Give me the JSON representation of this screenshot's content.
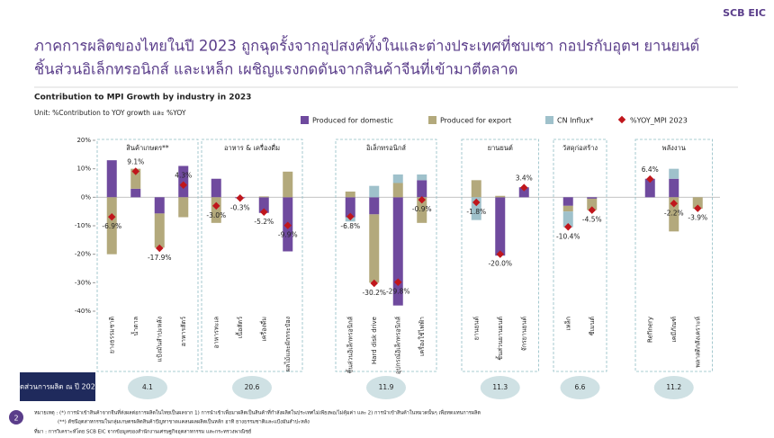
{
  "header": {
    "logo": "SCB EIC",
    "title_lines": [
      "ภาคการผลิตของไทยในปี 2023 ถูกฉุดรั้งจากอุปสงค์ทั้งในและต่างประเทศที่ชบเซา กอปรกับอุตฯ ยานยนต์",
      "ชิ้นส่วนอิเล็กทรอนิกส์ และเหล็ก เผชิญแรงกดดันจากสินค้าจีนที่เข้ามาตีตลาด"
    ]
  },
  "chart_data": {
    "type": "bar",
    "stacked": true,
    "title": "Contribution to MPI Growth by industry in 2023",
    "unit": "Unit: %Contribution to YOY growth และ %YOY",
    "ylim": [
      -40,
      20
    ],
    "yticks": [
      {
        "value": 20,
        "label": "20%"
      },
      {
        "value": 10,
        "label": "10%"
      },
      {
        "value": 0,
        "label": "0%"
      },
      {
        "value": -10,
        "label": "-10%"
      },
      {
        "value": -20,
        "label": "-20%"
      },
      {
        "value": -30,
        "label": "-30%"
      },
      {
        "value": -40,
        "label": "-40%"
      }
    ],
    "grid": false,
    "groups": [
      {
        "name": "สินค้าเกษตร**",
        "share": 4.1,
        "categories": [
          "ยางธรรมชาติ",
          "น้ำตาล",
          "แป้งมันสำปะหลัง",
          "อาหารสัตว์"
        ]
      },
      {
        "name": "อาหาร & เครื่องดื่ม",
        "share": 20.6,
        "categories": [
          "อาหารทะเล",
          "เนื้อสัตว์",
          "เครื่องดื่ม",
          "ผลไม้และผักกระป๋อง"
        ]
      },
      {
        "name": "อิเล็กทรอนิกส์",
        "share": 11.9,
        "categories": [
          "ชิ้นส่วนอิเล็กทรอนิกส์",
          "Hard disk drive",
          "อุปกรณ์อิเล็กทรอนิกส์",
          "เครื่องใช้ไฟฟ้า"
        ]
      },
      {
        "name": "ยานยนต์",
        "share": 11.3,
        "categories": [
          "ยานยนต์",
          "ชิ้นส่วนยานยนต์",
          "จักรยานยนต์"
        ]
      },
      {
        "name": "วัสดุก่อสร้าง",
        "share": 6.6,
        "categories": [
          "เหล็ก",
          "ซีเมนต์"
        ]
      },
      {
        "name": "พลังงาน",
        "share": 11.2,
        "categories": [
          "Refinery",
          "เคมีภัณฑ์",
          "พลาสติกสังเคราะห์"
        ]
      }
    ],
    "share_label": "สัดส่วนการผลิต ณ ปี 2023",
    "series": [
      {
        "name": "Produced for domestic",
        "color": "#6f4a9e",
        "values": [
          13,
          3,
          -5.7,
          11,
          6.5,
          -0.3,
          -5.5,
          -19,
          -7,
          -6,
          -38,
          6,
          0,
          -20.5,
          3.5,
          -3,
          -0.5,
          6.5,
          6.5,
          0
        ]
      },
      {
        "name": "Produced for export",
        "color": "#b3a97c",
        "values": [
          -20,
          7,
          -12,
          -7,
          -9,
          0,
          0.3,
          9,
          2,
          -24,
          5,
          -9,
          6,
          0.5,
          0,
          -2,
          -4,
          0,
          -12,
          -4
        ]
      },
      {
        "name": "CN  Influx*",
        "color": "#9fc1cb",
        "values": [
          0,
          0,
          0,
          0,
          0,
          0,
          0,
          0,
          -1.5,
          4,
          3,
          2,
          -8,
          0,
          0,
          -5.5,
          0,
          0,
          3.5,
          0
        ]
      }
    ],
    "yoy": {
      "name": "%YOY_MPI 2023",
      "color": "#c0161c",
      "values": [
        -6.9,
        9.1,
        -17.9,
        4.3,
        -3.0,
        -0.3,
        -5.2,
        -9.9,
        -6.8,
        -30.2,
        -29.8,
        -0.9,
        -1.8,
        -20.0,
        3.4,
        -10.4,
        -4.5,
        6.4,
        -2.2,
        -3.9
      ],
      "value_labels": [
        "-6.9%",
        "9.1%",
        "-17.9%",
        "4.3%",
        "-3.0%",
        "-0.3%",
        "-5.2%",
        "-9.9%",
        "-6.8%",
        "-30.2%",
        "-29.8%",
        "-0.9%",
        "-1.8%",
        "-20.0%",
        "3.4%",
        "-10.4%",
        "-4.5%",
        "6.4%",
        "-2.2%",
        "-3.9%"
      ]
    }
  },
  "footer": {
    "page": "2",
    "notes": [
      "หมายเหตุ : (*) การนำเข้าสินค้าจากจีนที่ส่งผลต่อการผลิตในไทยเป็นผลจาก 1) การนำเข้าเพื่อมาผลิตเป็นสินค้าที่กำลังผลิตในประเทศไม่เพียงพอ/ไม่คุ้มค่า และ 2) การนำเข้าสินค้าในหมวดนั้นๆ เพื่อทดแทนการผลิต",
      "(**) ดัชนีอุตสาหกรรมในกลุ่มเกษตรผลิตสินค้าปัญหาขาดแคลนผลผลิตเป็นหลัก อาทิ ยางธรรมชาติและแป้งมันสำปะหลัง",
      "ที่มา : การวิเคราะห์โดย SCB EIC จากข้อมูลของสำนักงานเศรษฐกิจอุตสาหกรรม และกระทรวงพาณิชย์"
    ]
  }
}
